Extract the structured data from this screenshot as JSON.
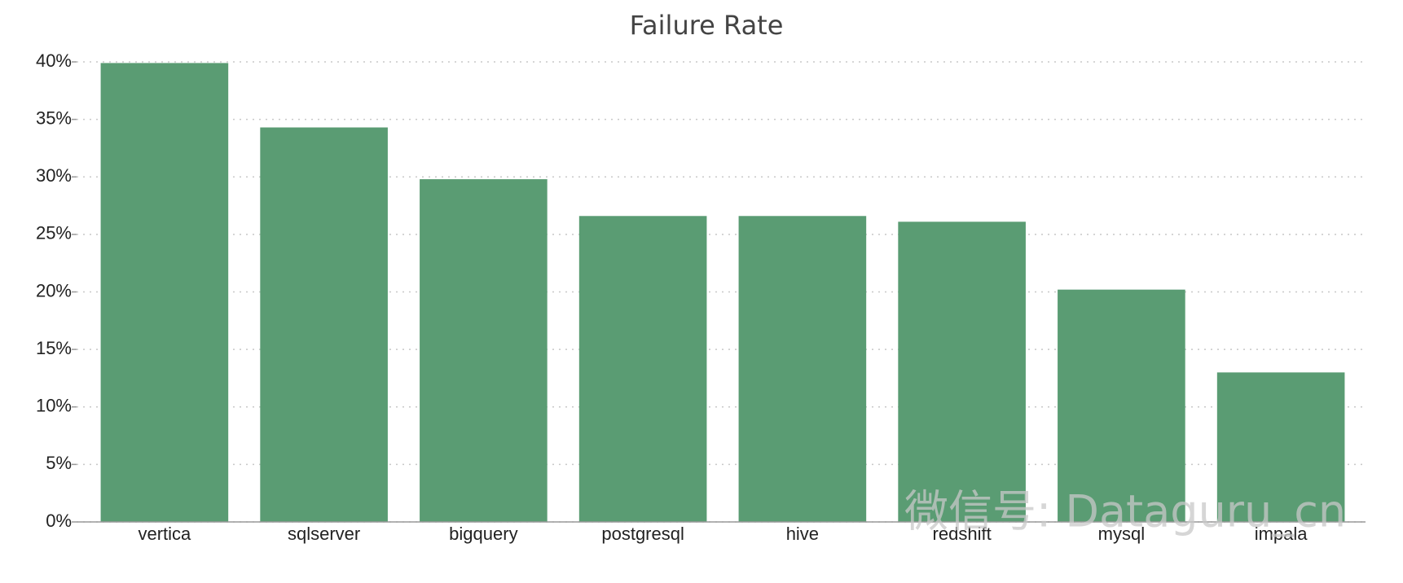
{
  "chart_data": {
    "type": "bar",
    "title": "Failure Rate",
    "categories": [
      "vertica",
      "sqlserver",
      "bigquery",
      "postgresql",
      "hive",
      "redshift",
      "mysql",
      "impala"
    ],
    "values": [
      39.9,
      34.3,
      29.8,
      26.6,
      26.6,
      26.1,
      20.2,
      13.0
    ],
    "color": "#5a9c73",
    "ylim": [
      0,
      40
    ],
    "yticks": [
      {
        "value": 0,
        "label": "0%"
      },
      {
        "value": 5,
        "label": "5%"
      },
      {
        "value": 10,
        "label": "10%"
      },
      {
        "value": 15,
        "label": "15%"
      },
      {
        "value": 20,
        "label": "20%"
      },
      {
        "value": 25,
        "label": "25%"
      },
      {
        "value": 30,
        "label": "30%"
      },
      {
        "value": 35,
        "label": "35%"
      },
      {
        "value": 40,
        "label": "40%"
      }
    ],
    "grid": true
  },
  "watermark": "微信号: Dataguru_cn"
}
